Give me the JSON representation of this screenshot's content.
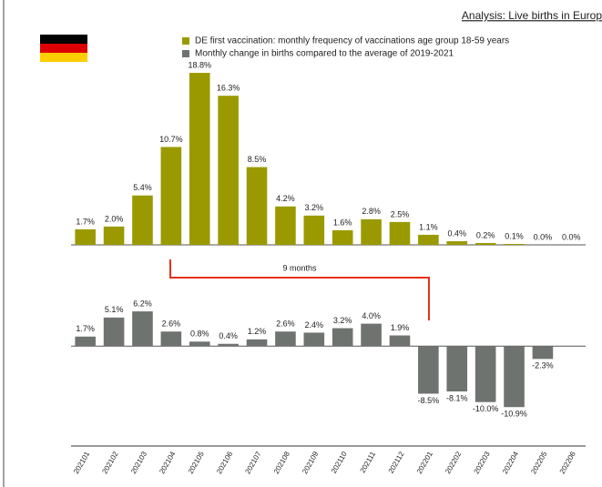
{
  "chart_data": {
    "type": "bar",
    "title": "Analysis: Live births in Europ",
    "annotation": "9 months",
    "categories": [
      "202101",
      "202102",
      "202103",
      "202104",
      "202105",
      "202106",
      "202107",
      "202108",
      "202109",
      "202110",
      "202111",
      "202112",
      "202201",
      "202202",
      "202203",
      "202204",
      "202205",
      "202206"
    ],
    "series": [
      {
        "name": "DE first vaccination: monthly frequency of vaccinations age group 18-59 years",
        "color": "#9a9a00",
        "values": [
          1.7,
          2.0,
          5.4,
          10.7,
          18.8,
          16.3,
          8.5,
          4.2,
          3.2,
          1.6,
          2.8,
          2.5,
          1.1,
          0.4,
          0.2,
          0.1,
          0.0,
          0.0
        ],
        "value_labels": [
          "1.7%",
          "2.0%",
          "5.4%",
          "10.7%",
          "18.8%",
          "16.3%",
          "8.5%",
          "4.2%",
          "3.2%",
          "1.6%",
          "2.8%",
          "2.5%",
          "1.1%",
          "0.4%",
          "0.2%",
          "0.1%",
          "0.0%",
          "0.0%"
        ]
      },
      {
        "name": "Monthly change in births compared to the average of 2019-2021",
        "color": "#6f736f",
        "axis": "y2",
        "values": [
          1.7,
          5.1,
          6.2,
          2.6,
          0.8,
          0.4,
          1.2,
          2.6,
          2.4,
          3.2,
          4.0,
          1.9,
          -8.5,
          -8.1,
          -10.0,
          -10.9,
          -2.3,
          null
        ],
        "value_labels": [
          "1.7%",
          "5.1%",
          "6.2%",
          "2.6%",
          "0.8%",
          "0.4%",
          "1.2%",
          "2.6%",
          "2.4%",
          "3.2%",
          "4.0%",
          "1.9%",
          "-8.5%",
          "-8.1%",
          "-10.0%",
          "-10.9%",
          "-2.3%",
          null
        ]
      }
    ],
    "ylim": [
      0,
      20
    ],
    "y2lim": [
      -12,
      8
    ]
  }
}
